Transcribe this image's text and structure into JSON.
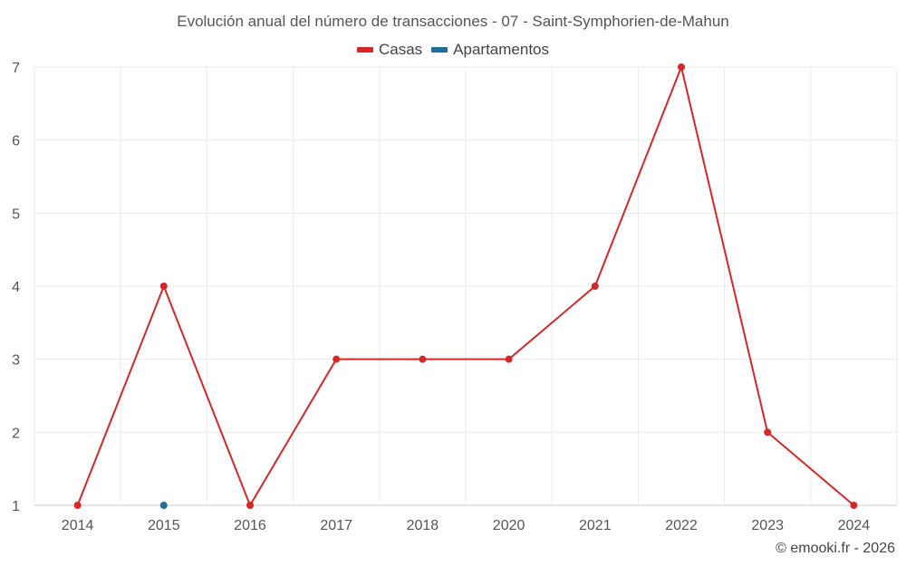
{
  "chart_data": {
    "type": "line",
    "title": "Evolución anual del número de transacciones - 07 - Saint-Symphorien-de-Mahun",
    "categories": [
      "2014",
      "2015",
      "2016",
      "2017",
      "2018",
      "2020",
      "2021",
      "2022",
      "2023",
      "2024"
    ],
    "series": [
      {
        "name": "Casas",
        "color": "#d62728",
        "values": [
          1,
          4,
          1,
          3,
          3,
          3,
          4,
          7,
          2,
          1
        ]
      },
      {
        "name": "Apartamentos",
        "color": "#1f6d9e",
        "values": [
          null,
          1,
          null,
          null,
          null,
          null,
          null,
          null,
          null,
          null
        ]
      }
    ],
    "yticks": [
      1,
      2,
      3,
      4,
      5,
      6,
      7
    ],
    "ylim": [
      1,
      7
    ],
    "xlabel": "",
    "ylabel": "",
    "grid": true,
    "legend": "top-center"
  },
  "credit": "© emooki.fr - 2026"
}
